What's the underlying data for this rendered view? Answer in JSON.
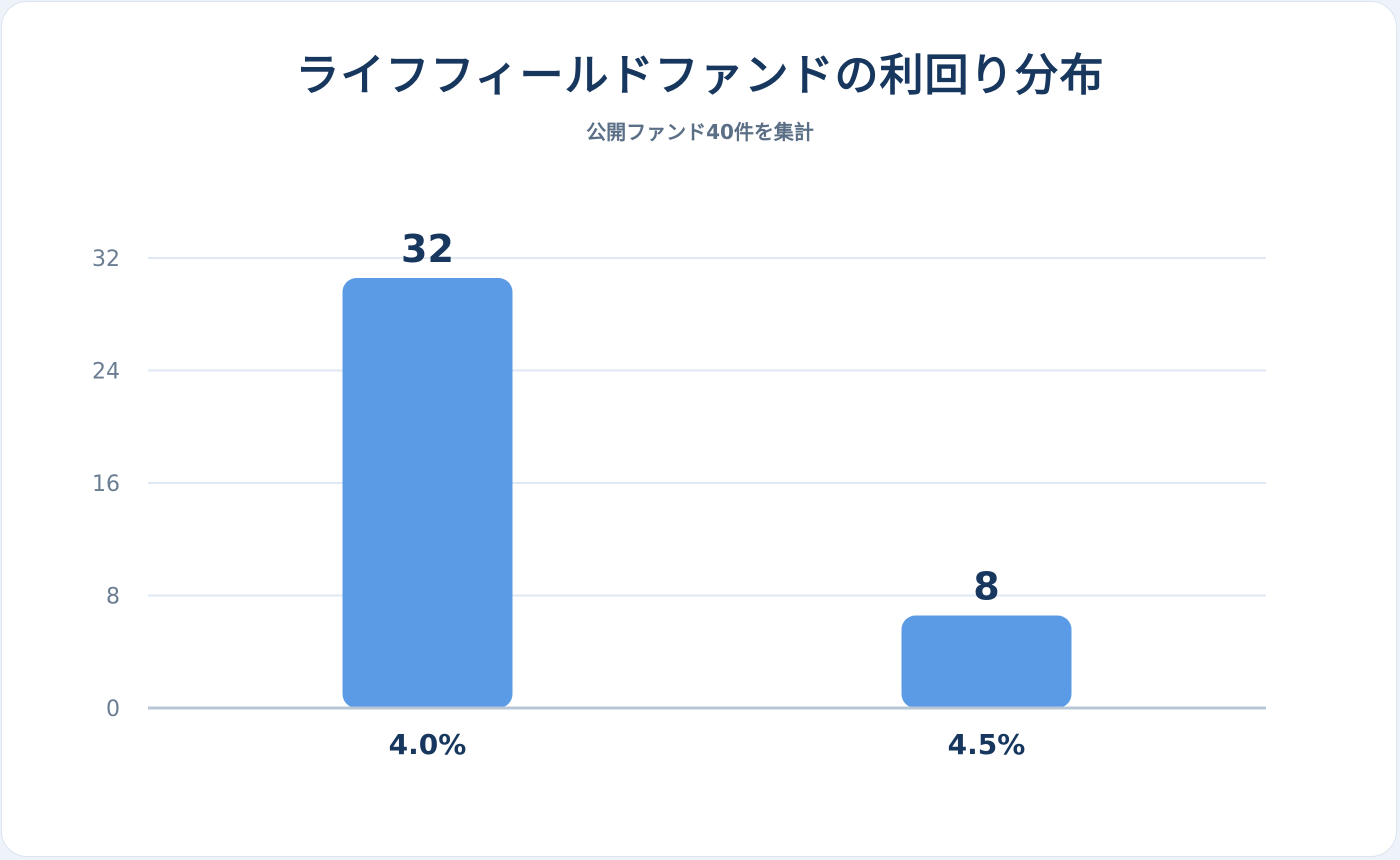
{
  "chart_data": {
    "type": "bar",
    "title": "ライフフィールドファンドの利回り分布",
    "subtitle": "公開ファンド40件を集計",
    "categories": [
      "4.0%",
      "4.5%"
    ],
    "values": [
      32,
      8
    ],
    "ylim": [
      0,
      32
    ],
    "yticks": [
      0,
      8,
      16,
      24,
      32
    ],
    "grid": true,
    "legend": "none",
    "colors": {
      "bar": "#5b9be5",
      "grid": "#dfe9f4",
      "axis": "#b8c7d6",
      "text": "#17375e"
    }
  }
}
